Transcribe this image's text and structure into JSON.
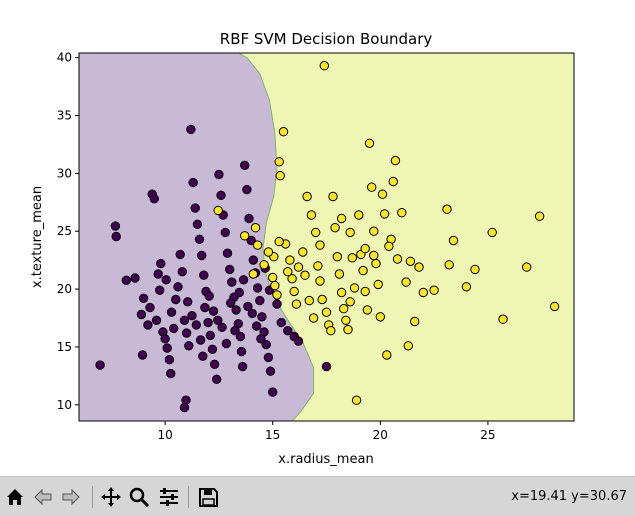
{
  "chart_data": {
    "type": "scatter",
    "title": "RBF SVM Decision Boundary",
    "xlabel": "x.radius_mean",
    "ylabel": "x.texture_mean",
    "xlim": [
      6.0,
      29.0
    ],
    "ylim": [
      8.6,
      40.4
    ],
    "xticks": [
      10,
      15,
      20,
      25
    ],
    "yticks": [
      10,
      15,
      20,
      25,
      30,
      35,
      40
    ],
    "grid": false,
    "colors": {
      "class_0_point": "#440154",
      "class_1_point": "#fde725",
      "class_0_region": "#c8bad6",
      "class_1_region": "#eff6b4",
      "boundary": "#82b46e"
    },
    "decision_boundary": [
      [
        6.0,
        40.4
      ],
      [
        13.4,
        40.4
      ],
      [
        13.8,
        40.0
      ],
      [
        14.4,
        38.6
      ],
      [
        14.85,
        36.3
      ],
      [
        15.1,
        33.5
      ],
      [
        15.2,
        30.5
      ],
      [
        15.05,
        28.0
      ],
      [
        14.7,
        25.7
      ],
      [
        14.55,
        23.5
      ],
      [
        14.65,
        21.5
      ],
      [
        15.0,
        19.5
      ],
      [
        15.6,
        17.6
      ],
      [
        16.4,
        15.4
      ],
      [
        16.9,
        13.2
      ],
      [
        16.9,
        11.0
      ],
      [
        16.3,
        9.4
      ],
      [
        15.9,
        8.6
      ],
      [
        6.0,
        8.6
      ]
    ],
    "series": [
      {
        "class": 0,
        "points": [
          [
            6.98,
            13.43
          ],
          [
            7.69,
            25.44
          ],
          [
            7.73,
            24.54
          ],
          [
            8.2,
            20.76
          ],
          [
            8.6,
            20.96
          ],
          [
            8.9,
            17.8
          ],
          [
            9.0,
            19.2
          ],
          [
            9.2,
            16.9
          ],
          [
            9.3,
            18.4
          ],
          [
            8.95,
            14.3
          ],
          [
            9.4,
            28.2
          ],
          [
            9.5,
            27.8
          ],
          [
            9.68,
            21.3
          ],
          [
            9.75,
            19.9
          ],
          [
            9.8,
            22.2
          ],
          [
            9.9,
            16.3
          ],
          [
            10.0,
            15.7
          ],
          [
            10.1,
            14.9
          ],
          [
            10.2,
            13.9
          ],
          [
            10.26,
            12.7
          ],
          [
            10.3,
            18.0
          ],
          [
            10.5,
            19.1
          ],
          [
            10.6,
            20.2
          ],
          [
            10.7,
            23.0
          ],
          [
            10.8,
            21.5
          ],
          [
            10.9,
            17.3
          ],
          [
            11.0,
            16.2
          ],
          [
            11.1,
            15.1
          ],
          [
            10.97,
            10.4
          ],
          [
            10.9,
            9.76
          ],
          [
            11.2,
            33.8
          ],
          [
            11.3,
            29.2
          ],
          [
            11.4,
            27.0
          ],
          [
            11.5,
            25.6
          ],
          [
            11.6,
            24.3
          ],
          [
            11.7,
            22.9
          ],
          [
            11.8,
            21.2
          ],
          [
            11.9,
            19.8
          ],
          [
            11.85,
            18.4
          ],
          [
            12.0,
            17.1
          ],
          [
            12.1,
            16.0
          ],
          [
            12.2,
            14.8
          ],
          [
            12.3,
            13.5
          ],
          [
            12.4,
            12.2
          ],
          [
            12.5,
            29.9
          ],
          [
            12.6,
            28.1
          ],
          [
            12.7,
            26.4
          ],
          [
            12.8,
            24.9
          ],
          [
            12.9,
            23.1
          ],
          [
            13.0,
            21.7
          ],
          [
            13.1,
            20.6
          ],
          [
            13.2,
            19.3
          ],
          [
            13.3,
            18.2
          ],
          [
            13.4,
            17.0
          ],
          [
            13.5,
            15.9
          ],
          [
            13.55,
            14.6
          ],
          [
            13.6,
            13.3
          ],
          [
            13.7,
            30.7
          ],
          [
            13.8,
            28.6
          ],
          [
            13.9,
            26.1
          ],
          [
            14.0,
            24.2
          ],
          [
            14.1,
            22.5
          ],
          [
            14.2,
            21.4
          ],
          [
            14.3,
            20.1
          ],
          [
            14.4,
            19.0
          ],
          [
            14.5,
            17.6
          ],
          [
            14.6,
            16.3
          ],
          [
            14.7,
            15.2
          ],
          [
            14.8,
            14.1
          ],
          [
            14.9,
            12.9
          ],
          [
            15.0,
            11.1
          ],
          [
            15.2,
            18.7
          ],
          [
            15.4,
            17.1
          ],
          [
            15.7,
            16.4
          ],
          [
            16.0,
            15.9
          ],
          [
            16.2,
            15.5
          ],
          [
            17.5,
            13.3
          ],
          [
            9.6,
            17.3
          ],
          [
            10.05,
            20.8
          ],
          [
            10.4,
            16.6
          ],
          [
            11.05,
            18.9
          ],
          [
            11.25,
            17.7
          ],
          [
            11.45,
            16.9
          ],
          [
            11.65,
            15.6
          ],
          [
            11.75,
            14.2
          ],
          [
            12.05,
            19.4
          ],
          [
            12.25,
            18.1
          ],
          [
            12.45,
            17.3
          ],
          [
            12.65,
            16.7
          ],
          [
            12.85,
            15.3
          ],
          [
            13.05,
            18.8
          ],
          [
            13.25,
            16.4
          ],
          [
            13.45,
            19.7
          ],
          [
            13.65,
            20.8
          ],
          [
            13.85,
            18.5
          ],
          [
            14.05,
            17.9
          ],
          [
            14.25,
            16.8
          ],
          [
            14.45,
            15.7
          ],
          [
            14.65,
            21.8
          ],
          [
            14.85,
            19.9
          ]
        ]
      },
      {
        "class": 1,
        "points": [
          [
            12.47,
            26.8
          ],
          [
            13.7,
            24.6
          ],
          [
            14.2,
            25.3
          ],
          [
            14.6,
            22.1
          ],
          [
            15.0,
            21.0
          ],
          [
            15.05,
            22.8
          ],
          [
            15.1,
            20.3
          ],
          [
            15.2,
            19.5
          ],
          [
            15.3,
            31.0
          ],
          [
            15.35,
            29.8
          ],
          [
            15.5,
            33.6
          ],
          [
            15.6,
            23.9
          ],
          [
            15.8,
            22.5
          ],
          [
            15.9,
            20.9
          ],
          [
            16.0,
            19.8
          ],
          [
            16.1,
            18.7
          ],
          [
            16.2,
            21.9
          ],
          [
            16.4,
            23.2
          ],
          [
            16.6,
            28.0
          ],
          [
            16.8,
            26.4
          ],
          [
            17.0,
            24.9
          ],
          [
            17.1,
            22.0
          ],
          [
            17.2,
            20.7
          ],
          [
            17.3,
            19.1
          ],
          [
            17.4,
            39.3
          ],
          [
            17.5,
            18.0
          ],
          [
            17.6,
            16.9
          ],
          [
            17.8,
            28.0
          ],
          [
            17.9,
            25.3
          ],
          [
            18.0,
            22.8
          ],
          [
            18.1,
            21.3
          ],
          [
            18.2,
            19.7
          ],
          [
            18.3,
            18.3
          ],
          [
            18.4,
            17.3
          ],
          [
            18.5,
            16.5
          ],
          [
            18.6,
            24.9
          ],
          [
            18.7,
            22.7
          ],
          [
            18.8,
            20.1
          ],
          [
            18.9,
            10.4
          ],
          [
            19.0,
            26.4
          ],
          [
            19.1,
            23.0
          ],
          [
            19.2,
            21.6
          ],
          [
            19.3,
            19.8
          ],
          [
            19.4,
            18.2
          ],
          [
            19.5,
            32.6
          ],
          [
            19.6,
            28.8
          ],
          [
            19.7,
            25.0
          ],
          [
            19.8,
            22.2
          ],
          [
            19.9,
            20.4
          ],
          [
            20.0,
            17.6
          ],
          [
            20.1,
            28.2
          ],
          [
            20.2,
            26.5
          ],
          [
            20.3,
            14.3
          ],
          [
            20.5,
            24.3
          ],
          [
            20.6,
            29.3
          ],
          [
            20.7,
            31.1
          ],
          [
            20.8,
            22.6
          ],
          [
            21.0,
            26.6
          ],
          [
            21.2,
            20.6
          ],
          [
            21.3,
            15.1
          ],
          [
            21.4,
            22.4
          ],
          [
            21.6,
            17.2
          ],
          [
            21.8,
            21.9
          ],
          [
            22.0,
            19.7
          ],
          [
            22.5,
            19.9
          ],
          [
            23.1,
            26.9
          ],
          [
            23.2,
            22.1
          ],
          [
            23.4,
            24.2
          ],
          [
            24.0,
            20.2
          ],
          [
            24.4,
            21.7
          ],
          [
            25.2,
            24.9
          ],
          [
            25.7,
            17.4
          ],
          [
            26.8,
            21.9
          ],
          [
            27.4,
            26.3
          ],
          [
            28.1,
            18.5
          ],
          [
            16.9,
            17.5
          ],
          [
            17.7,
            16.4
          ],
          [
            18.6,
            18.9
          ],
          [
            19.3,
            23.5
          ],
          [
            20.4,
            23.7
          ],
          [
            14.1,
            21.3
          ],
          [
            14.3,
            23.8
          ],
          [
            14.8,
            23.2
          ],
          [
            15.3,
            24.1
          ],
          [
            15.7,
            21.5
          ],
          [
            16.5,
            21.2
          ],
          [
            16.7,
            19.0
          ],
          [
            17.2,
            23.8
          ],
          [
            18.2,
            26.1
          ],
          [
            19.7,
            22.9
          ]
        ]
      }
    ]
  },
  "toolbar": {
    "items": [
      "home-icon",
      "back-icon",
      "forward-icon",
      "pan-icon",
      "zoom-icon",
      "configure-icon",
      "save-icon"
    ],
    "coords_text": "x=19.41 y=30.67"
  }
}
